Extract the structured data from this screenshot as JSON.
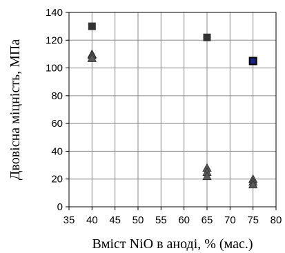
{
  "chart_data": {
    "type": "scatter",
    "title": "",
    "xlabel": "Вміст NiO в аноді, % (мас.)",
    "ylabel": "Двовісна міцність, МПа",
    "xlim": [
      35,
      80
    ],
    "ylim": [
      0,
      140
    ],
    "xticks": [
      35,
      40,
      45,
      50,
      55,
      60,
      65,
      70,
      75,
      80
    ],
    "yticks": [
      0,
      20,
      40,
      60,
      80,
      100,
      120,
      140
    ],
    "grid": true,
    "legend": "none",
    "series": [
      {
        "marker": "square",
        "color": "#333333",
        "points": [
          [
            40,
            130
          ],
          [
            65,
            122
          ],
          [
            75,
            105
          ]
        ]
      },
      {
        "marker": "triangle",
        "color": "#5a5a5a",
        "points": [
          [
            40,
            110
          ],
          [
            40,
            109
          ],
          [
            40,
            107
          ],
          [
            65,
            28
          ],
          [
            65,
            25
          ],
          [
            65,
            22
          ],
          [
            75,
            20
          ],
          [
            75,
            18
          ],
          [
            75,
            16
          ]
        ]
      }
    ],
    "highlight": {
      "x": 75,
      "y": 105,
      "fill": "#1a237e"
    }
  }
}
